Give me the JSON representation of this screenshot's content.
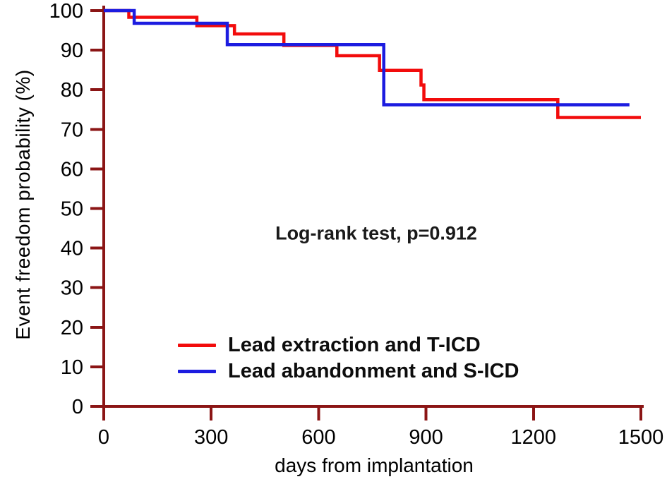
{
  "chart_data": {
    "type": "line",
    "subtype": "kaplan-meier-step",
    "title": "",
    "xlabel": "days from implantation",
    "ylabel": "Event freedom probability (%)",
    "annotation": "Log-rank test, p=0.912",
    "xlim": [
      0,
      1500
    ],
    "ylim": [
      0,
      100
    ],
    "xticks": [
      0,
      300,
      600,
      900,
      1200,
      1500
    ],
    "yticks": [
      0,
      10,
      20,
      30,
      40,
      50,
      60,
      70,
      80,
      90,
      100
    ],
    "grid": false,
    "legend_position": "lower-left-inside",
    "axis_color": "#8b1515",
    "tick_label_color": "#000000",
    "series": [
      {
        "name": "Lead extraction and T-ICD",
        "color": "#f20c0c",
        "points": [
          [
            0,
            100
          ],
          [
            70,
            98.3
          ],
          [
            260,
            96.2
          ],
          [
            365,
            94.1
          ],
          [
            503,
            91.2
          ],
          [
            651,
            88.6
          ],
          [
            770,
            84.9
          ],
          [
            886,
            81.2
          ],
          [
            894,
            77.5
          ],
          [
            1268,
            73.0
          ]
        ],
        "end_day": 1500
      },
      {
        "name": "Lead abandonment and S-ICD",
        "color": "#1c1ce0",
        "points": [
          [
            0,
            100
          ],
          [
            85,
            96.8
          ],
          [
            345,
            91.4
          ],
          [
            782,
            76.2
          ]
        ],
        "end_day": 1468
      }
    ]
  }
}
